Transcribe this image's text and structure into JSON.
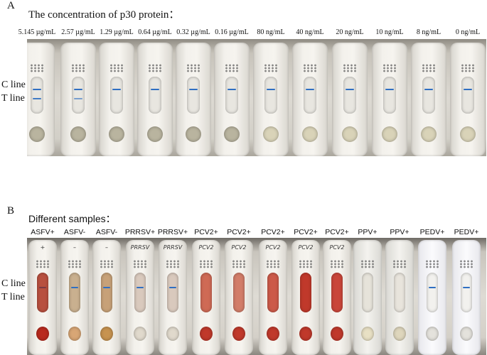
{
  "panelA": {
    "letter": "A",
    "title": "The concentration of p30 protein：",
    "concentrations": [
      "5.145 µg/mL",
      "2.57 µg/mL",
      "1.29 µg/mL",
      "0.64 µg/mL",
      "0.32 µg/mL",
      "0.16 µg/mL",
      "80 ng/mL",
      "40 ng/mL",
      "20 ng/mL",
      "10 ng/mL",
      "8 ng/mL",
      "0 ng/mL"
    ],
    "c_line": "C line",
    "t_line": "T line"
  },
  "panelB": {
    "letter": "B",
    "title": "Different samples：",
    "samples": [
      "ASFV+",
      "ASFV-",
      "ASFV-",
      "PRRSV+",
      "PRRSV+",
      "PCV2+",
      "PCV2+",
      "PCV2+",
      "PCV2+",
      "PCV2+",
      "PPV+",
      "PPV+",
      "PEDV+",
      "PEDV+"
    ],
    "handwriting": [
      "+",
      "–",
      "–",
      "PRRSV",
      "PRRSV",
      "PCV2",
      "PCV2",
      "PCV2",
      "PCV2",
      "PCV2",
      "",
      "",
      "",
      ""
    ],
    "c_line": "C line",
    "t_line": "T line"
  },
  "colors": {
    "test_line_blue": "#2f6fc2",
    "pad_red": "#c0392b"
  }
}
